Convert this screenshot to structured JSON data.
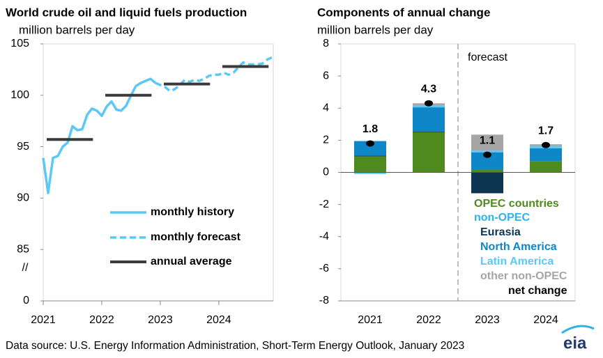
{
  "chart_data": [
    {
      "type": "line",
      "title": "World crude oil and liquid fuels production",
      "subtitle": "million barrels per day",
      "x": [
        2021.0,
        2021.083,
        2021.167,
        2021.25,
        2021.333,
        2021.417,
        2021.5,
        2021.583,
        2021.667,
        2021.75,
        2021.833,
        2021.917,
        2022.0,
        2022.083,
        2022.167,
        2022.25,
        2022.333,
        2022.417,
        2022.5,
        2022.583,
        2022.667,
        2022.75,
        2022.833,
        2022.917,
        2023.0,
        2023.083,
        2023.167,
        2023.25,
        2023.333,
        2023.417,
        2023.5,
        2023.583,
        2023.667,
        2023.75,
        2023.833,
        2023.917,
        2024.0,
        2024.083,
        2024.167,
        2024.25,
        2024.333,
        2024.417,
        2024.5,
        2024.583,
        2024.667,
        2024.75,
        2024.833,
        2024.917
      ],
      "series": [
        {
          "name": "monthly history",
          "color": "#5bc8f5",
          "style": "solid",
          "values": [
            93.9,
            90.5,
            93.9,
            94.1,
            95.0,
            95.4,
            97.0,
            96.6,
            96.7,
            98.1,
            98.7,
            98.5,
            98.0,
            98.9,
            99.4,
            98.6,
            98.5,
            99.0,
            100.0,
            100.9,
            101.2,
            101.4,
            101.6,
            101.2,
            null,
            null,
            null,
            null,
            null,
            null,
            null,
            null,
            null,
            null,
            null,
            null,
            null,
            null,
            null,
            null,
            null,
            null,
            null,
            null,
            null,
            null,
            null,
            null
          ]
        },
        {
          "name": "monthly forecast",
          "color": "#5bc8f5",
          "style": "dashed",
          "values": [
            null,
            null,
            null,
            null,
            null,
            null,
            null,
            null,
            null,
            null,
            null,
            null,
            null,
            null,
            null,
            null,
            null,
            null,
            null,
            null,
            null,
            null,
            null,
            101.2,
            101.0,
            100.8,
            100.4,
            100.6,
            101.0,
            101.5,
            101.3,
            101.5,
            101.4,
            101.6,
            101.9,
            102.0,
            102.0,
            102.2,
            102.0,
            102.2,
            102.7,
            103.2,
            103.0,
            103.0,
            103.0,
            103.1,
            103.5,
            103.7
          ]
        },
        {
          "name": "annual average",
          "color": "#3a3a3a",
          "style": "segment",
          "x": [
            2021,
            2022,
            2023,
            2024
          ],
          "values": [
            95.7,
            100.0,
            101.1,
            102.8
          ]
        }
      ],
      "xlim": [
        2021,
        2024.93
      ],
      "xticks": [
        2021,
        2022,
        2023,
        2024
      ],
      "ylim": [
        0,
        105
      ],
      "yticks": [
        0,
        85,
        90,
        95,
        100,
        105
      ],
      "y_break": [
        0,
        80
      ],
      "y_break_label": "//",
      "legend": "lower right"
    },
    {
      "type": "bar",
      "title": "Components of annual change",
      "subtitle": "million barrels per day",
      "categories": [
        "2021",
        "2022",
        "2023",
        "2024"
      ],
      "series": [
        {
          "name": "OPEC countries",
          "color": "#4e8a1e",
          "values": [
            1.0,
            2.5,
            0.15,
            0.7
          ]
        },
        {
          "name": "Eurasia",
          "color": "#0d3552",
          "values": [
            0.05,
            0.05,
            -1.3,
            0
          ]
        },
        {
          "name": "North America",
          "color": "#0f86c8",
          "values": [
            0.9,
            1.5,
            1.1,
            0.8
          ]
        },
        {
          "name": "Latin America",
          "color": "#5bc8f5",
          "values": [
            -0.1,
            0.1,
            0.1,
            0.15
          ]
        },
        {
          "name": "other non-OPEC",
          "color": "#a6a6a6",
          "values": [
            0,
            0.15,
            1.0,
            0.1
          ]
        },
        {
          "name": "net change",
          "color": "#000000",
          "mark": "dot",
          "values": [
            1.8,
            4.3,
            1.1,
            1.7
          ]
        }
      ],
      "legend_heading": "non-OPEC",
      "legend_heading_color": "#2fb2e9",
      "forecast_label": "forecast",
      "forecast_category": "2023",
      "ylim": [
        -8,
        8
      ],
      "yticks": [
        -8,
        -6,
        -4,
        -2,
        0,
        2,
        4,
        6,
        8
      ]
    }
  ],
  "source": "Data source: U.S. Energy Information Administration, Short-Term Energy Outlook, January 2023",
  "logo": "eia"
}
